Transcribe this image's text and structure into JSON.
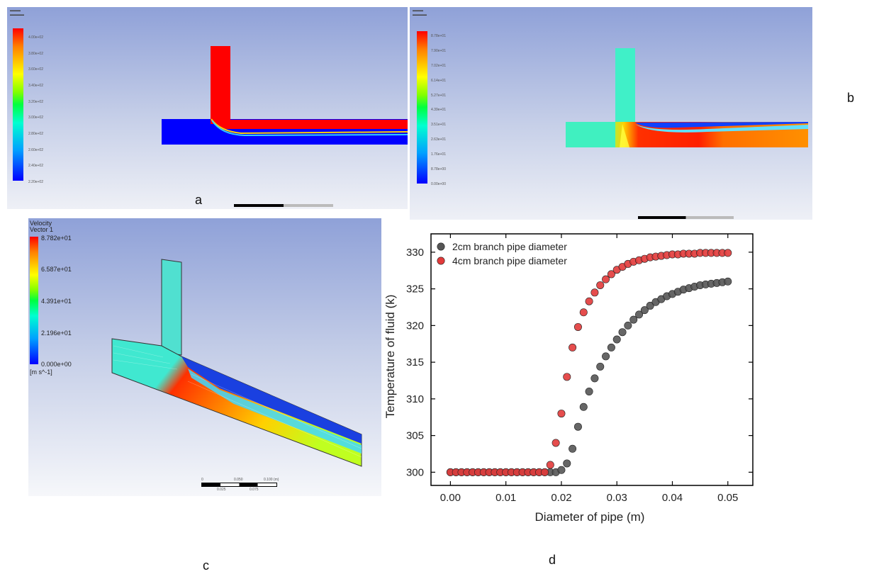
{
  "panels": {
    "a": {
      "label": "a",
      "legend_ticks": [
        "4.00e+02",
        "3.80e+02",
        "3.60e+02",
        "3.40e+02",
        "3.20e+02",
        "3.00e+02",
        "2.80e+02",
        "2.60e+02",
        "2.40e+02",
        "2.20e+02"
      ]
    },
    "b": {
      "label": "b",
      "legend_ticks": [
        "8.78e+01",
        "7.90e+01",
        "7.02e+01",
        "6.14e+01",
        "5.27e+01",
        "4.39e+01",
        "3.51e+01",
        "2.63e+01",
        "1.76e+01",
        "8.78e+00",
        "0.00e+00"
      ]
    },
    "c": {
      "label": "c",
      "legend_title": [
        "Velocity",
        "Vector 1"
      ],
      "legend_ticks": [
        "8.782e+01",
        "6.587e+01",
        "4.391e+01",
        "2.196e+01",
        "0.000e+00"
      ],
      "legend_unit": "[m s^-1]",
      "scale_top": [
        "0",
        "0.050",
        "0.100  (m)"
      ],
      "scale_bottom": [
        "0.025",
        "0.075"
      ]
    },
    "d": {
      "label": "d"
    }
  },
  "colors": {
    "series_2cm": "#555555",
    "series_4cm": "#e23a3a",
    "hot": "#ff0000",
    "cold": "#0000ff"
  },
  "chart_data": {
    "type": "scatter",
    "xlabel": "Diameter of pipe (m)",
    "ylabel": "Temperature of fluid (k)",
    "xlim": [
      -0.0035,
      0.0545
    ],
    "ylim": [
      298.2,
      332.5
    ],
    "xticks": [
      0.0,
      0.01,
      0.02,
      0.03,
      0.04,
      0.05
    ],
    "xtick_labels": [
      "0.00",
      "0.01",
      "0.02",
      "0.03",
      "0.04",
      "0.05"
    ],
    "yticks": [
      300,
      305,
      310,
      315,
      320,
      325,
      330
    ],
    "ytick_labels": [
      "300",
      "305",
      "310",
      "315",
      "320",
      "325",
      "330"
    ],
    "legend_position": "top-left",
    "series": [
      {
        "name": "2cm branch pipe diameter",
        "x": [
          0,
          0.001,
          0.002,
          0.003,
          0.004,
          0.005,
          0.006,
          0.007,
          0.008,
          0.009,
          0.01,
          0.011,
          0.012,
          0.013,
          0.014,
          0.015,
          0.016,
          0.017,
          0.018,
          0.019,
          0.02,
          0.021,
          0.022,
          0.023,
          0.024,
          0.025,
          0.026,
          0.027,
          0.028,
          0.029,
          0.03,
          0.031,
          0.032,
          0.033,
          0.034,
          0.035,
          0.036,
          0.037,
          0.038,
          0.039,
          0.04,
          0.041,
          0.042,
          0.043,
          0.044,
          0.045,
          0.046,
          0.047,
          0.048,
          0.049,
          0.05
        ],
        "y": [
          300,
          300,
          300,
          300,
          300,
          300,
          300,
          300,
          300,
          300,
          300,
          300,
          300,
          300,
          300,
          300,
          300,
          300,
          300,
          300,
          300.3,
          301.2,
          303.2,
          306.2,
          308.9,
          311.0,
          312.8,
          314.4,
          315.8,
          317.0,
          318.1,
          319.1,
          320.0,
          320.8,
          321.5,
          322.1,
          322.7,
          323.2,
          323.6,
          324.0,
          324.3,
          324.6,
          324.9,
          325.1,
          325.3,
          325.5,
          325.6,
          325.7,
          325.8,
          325.9,
          326.0
        ]
      },
      {
        "name": "4cm branch pipe diameter",
        "x": [
          0,
          0.001,
          0.002,
          0.003,
          0.004,
          0.005,
          0.006,
          0.007,
          0.008,
          0.009,
          0.01,
          0.011,
          0.012,
          0.013,
          0.014,
          0.015,
          0.016,
          0.017,
          0.018,
          0.019,
          0.02,
          0.021,
          0.022,
          0.023,
          0.024,
          0.025,
          0.026,
          0.027,
          0.028,
          0.029,
          0.03,
          0.031,
          0.032,
          0.033,
          0.034,
          0.035,
          0.036,
          0.037,
          0.038,
          0.039,
          0.04,
          0.041,
          0.042,
          0.043,
          0.044,
          0.045,
          0.046,
          0.047,
          0.048,
          0.049,
          0.05
        ],
        "y": [
          300,
          300,
          300,
          300,
          300,
          300,
          300,
          300,
          300,
          300,
          300,
          300,
          300,
          300,
          300,
          300,
          300,
          300,
          301,
          304,
          308,
          313,
          317,
          319.8,
          321.8,
          323.3,
          324.5,
          325.5,
          326.3,
          327.0,
          327.6,
          328.0,
          328.4,
          328.7,
          328.9,
          329.1,
          329.3,
          329.4,
          329.5,
          329.6,
          329.7,
          329.7,
          329.8,
          329.8,
          329.8,
          329.9,
          329.9,
          329.9,
          329.9,
          329.9,
          329.9
        ]
      }
    ]
  }
}
